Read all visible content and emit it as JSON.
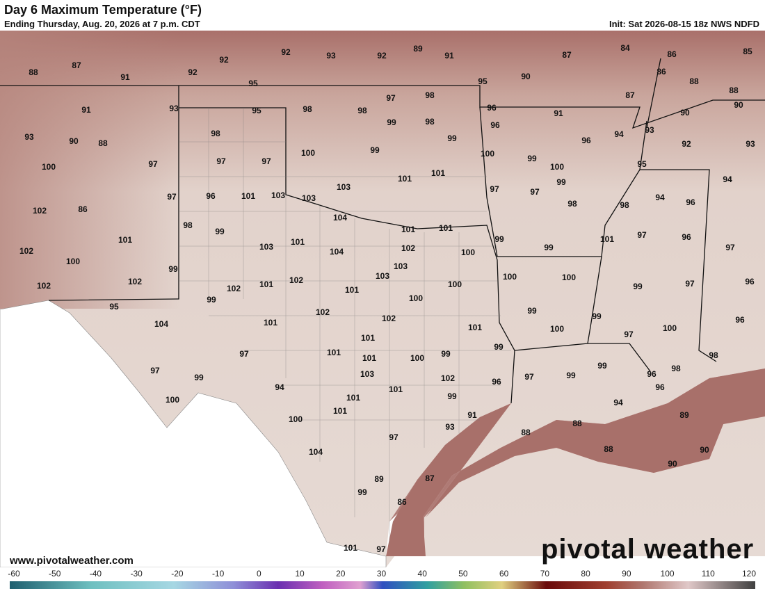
{
  "header": {
    "title": "Day 6 Maximum Temperature (°F)",
    "subtitle": "Ending Thursday, Aug. 20, 2026 at 7 p.m. CDT",
    "init": "Init: Sat 2026-08-15 18z NWS NDFD"
  },
  "map": {
    "temperatures": [
      88,
      87,
      91,
      92,
      92,
      92,
      93,
      92,
      89,
      91,
      87,
      84,
      86,
      85,
      95,
      95,
      90,
      86,
      88,
      88,
      97,
      98,
      91,
      93,
      95,
      98,
      98,
      96,
      91,
      87,
      90,
      90,
      99,
      98,
      96,
      94,
      93,
      93,
      90,
      88,
      98,
      99,
      96,
      92,
      93,
      100,
      99,
      100,
      99,
      100,
      97,
      97,
      97,
      95,
      100,
      101,
      101,
      99,
      94,
      103,
      97,
      97,
      94,
      96,
      97,
      96,
      101,
      103,
      103,
      98,
      98,
      102,
      86,
      104,
      101,
      101,
      98,
      99,
      99,
      101,
      97,
      96,
      101,
      103,
      101,
      104,
      102,
      100,
      99,
      97,
      102,
      100,
      103,
      99,
      103,
      100,
      100,
      102,
      102,
      101,
      102,
      101,
      100,
      99,
      97,
      96,
      102,
      99,
      100,
      95,
      102,
      99,
      99,
      104,
      101,
      102,
      96,
      101,
      100,
      97,
      100,
      101,
      99,
      97,
      101,
      101,
      100,
      99,
      98,
      97,
      103,
      99,
      98,
      96,
      99,
      102,
      96,
      97,
      99,
      94,
      101,
      96,
      100,
      101,
      99,
      94,
      101,
      91,
      89,
      100,
      93,
      88,
      88,
      97,
      104,
      88,
      90,
      90,
      89,
      87,
      99,
      86,
      101,
      97
    ]
  },
  "branding": {
    "logo": "pivotal weather",
    "url": "www.pivotalweather.com"
  },
  "colorbar": {
    "ticks": [
      -60,
      -50,
      -40,
      -30,
      -20,
      -10,
      0,
      10,
      20,
      30,
      40,
      50,
      60,
      70,
      80,
      90,
      100,
      110,
      120
    ]
  }
}
